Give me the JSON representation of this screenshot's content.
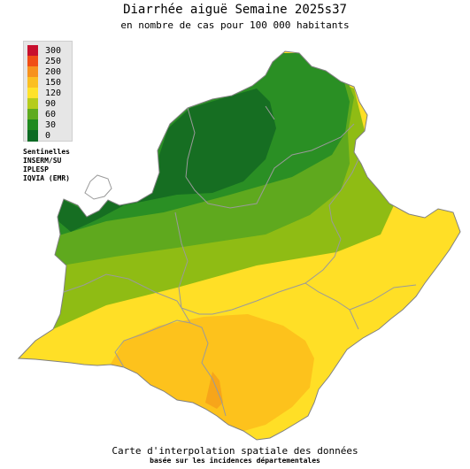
{
  "header": {
    "title": "Diarrhée aiguë Semaine 2025s37",
    "subtitle": "en nombre de cas pour 100 000 habitants"
  },
  "legend": {
    "classes": [
      {
        "label": "300",
        "color": "#c8102e"
      },
      {
        "label": "250",
        "color": "#f04e16"
      },
      {
        "label": "200",
        "color": "#f7921e"
      },
      {
        "label": "150",
        "color": "#fbbf22"
      },
      {
        "label": "120",
        "color": "#ffe22a"
      },
      {
        "label": "90",
        "color": "#b5cc1c"
      },
      {
        "label": "60",
        "color": "#5eab1f"
      },
      {
        "label": "30",
        "color": "#1f8a1f"
      },
      {
        "label": "0",
        "color": "#0c6a23"
      }
    ]
  },
  "sources": [
    "Sentinelles",
    "INSERM/SU",
    "IPLESP",
    "IQVIA (EMR)"
  ],
  "footer": {
    "line1": "Carte d'interpolation spatiale des données",
    "line2": "basée sur les incidences départementales"
  },
  "map_colors": {
    "dark_green": "#166e22",
    "green": "#2a8f24",
    "mid_green": "#5fa91e",
    "yellow_green": "#8fbc14",
    "yellow": "#ffdf26",
    "light_orange": "#fdc21c",
    "orange": "#f7a51a",
    "border": "#9a9a9a"
  }
}
